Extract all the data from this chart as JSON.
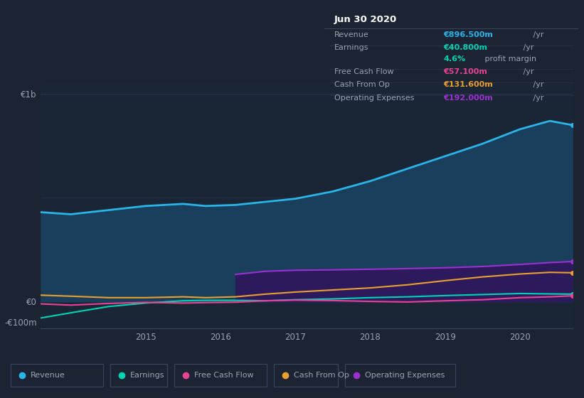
{
  "bg_color": "#1c2333",
  "plot_bg_color": "#1a2535",
  "text_color": "#9ba3b2",
  "title_color": "#ffffff",
  "x": [
    2013.6,
    2014.0,
    2014.5,
    2015.0,
    2015.5,
    2015.8,
    2016.2,
    2016.6,
    2017.0,
    2017.5,
    2018.0,
    2018.5,
    2019.0,
    2019.5,
    2020.0,
    2020.4,
    2020.7
  ],
  "revenue": [
    430,
    420,
    440,
    460,
    470,
    460,
    465,
    480,
    495,
    530,
    580,
    640,
    700,
    760,
    830,
    870,
    850
  ],
  "earnings": [
    -80,
    -55,
    -25,
    -8,
    3,
    5,
    5,
    3,
    8,
    12,
    18,
    22,
    28,
    33,
    38,
    36,
    35
  ],
  "free_cash": [
    -12,
    -18,
    -10,
    -5,
    -8,
    -6,
    -4,
    3,
    6,
    4,
    0,
    -3,
    3,
    8,
    18,
    22,
    27
  ],
  "cash_from_op": [
    30,
    25,
    18,
    18,
    22,
    18,
    22,
    35,
    45,
    55,
    65,
    80,
    100,
    118,
    132,
    140,
    138
  ],
  "op_expenses": [
    0,
    0,
    0,
    0,
    0,
    0,
    130,
    145,
    150,
    152,
    155,
    158,
    162,
    168,
    178,
    187,
    192
  ],
  "revenue_color": "#29b5e8",
  "earnings_color": "#00d4b4",
  "free_cash_color": "#e84393",
  "cash_from_op_color": "#e8a030",
  "op_expenses_color": "#9b30d0",
  "revenue_fill": "#1a3f5c",
  "op_expenses_fill": "#2d1a5c",
  "ylim_min": -130,
  "ylim_max": 1050,
  "y0_line": 0,
  "y500_line": 500,
  "y1000_line": 1000,
  "ytick_vals": [
    -100,
    0,
    1000
  ],
  "ytick_labels": [
    "-€100m",
    "€0",
    "€1b"
  ],
  "xtick_vals": [
    2015.0,
    2016.0,
    2017.0,
    2018.0,
    2019.0,
    2020.0
  ],
  "xtick_labels": [
    "2015",
    "2016",
    "2017",
    "2018",
    "2019",
    "2020"
  ],
  "infobox": {
    "title": "Jun 30 2020",
    "rows": [
      {
        "label": "Revenue",
        "value": "€896.500m",
        "unit": " /yr",
        "val_color": "#29b5e8"
      },
      {
        "label": "Earnings",
        "value": "€40.800m",
        "unit": " /yr",
        "val_color": "#00d4b4"
      },
      {
        "label": "",
        "value": "4.6%",
        "unit": " profit margin",
        "val_color": "#00d4b4"
      },
      {
        "label": "Free Cash Flow",
        "value": "€57.100m",
        "unit": " /yr",
        "val_color": "#e84393"
      },
      {
        "label": "Cash From Op",
        "value": "€131.600m",
        "unit": " /yr",
        "val_color": "#e8a030"
      },
      {
        "label": "Operating Expenses",
        "value": "€192.000m",
        "unit": " /yr",
        "val_color": "#9b30d0"
      }
    ]
  },
  "legend": [
    {
      "label": "Revenue",
      "color": "#29b5e8"
    },
    {
      "label": "Earnings",
      "color": "#00d4b4"
    },
    {
      "label": "Free Cash Flow",
      "color": "#e84393"
    },
    {
      "label": "Cash From Op",
      "color": "#e8a030"
    },
    {
      "label": "Operating Expenses",
      "color": "#9b30d0"
    }
  ]
}
